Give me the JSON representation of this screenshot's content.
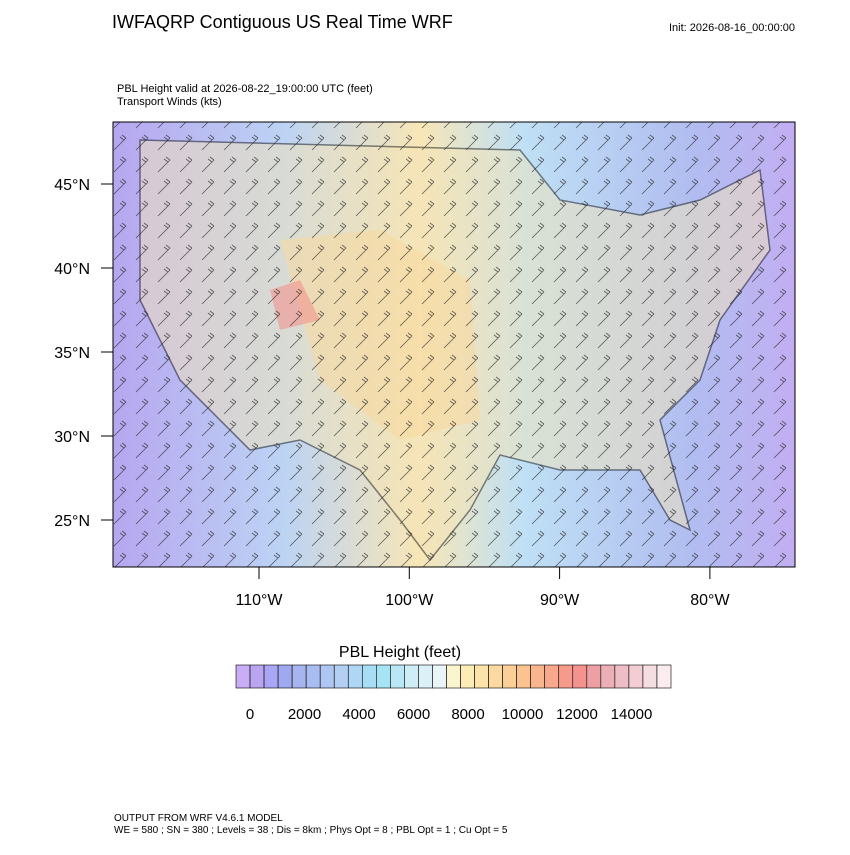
{
  "header": {
    "title": "IWFAQRP Contiguous US Real Time WRF",
    "init": "Init: 2026-08-16_00:00:00"
  },
  "map": {
    "subtitle": [
      "PBL Height valid at 2026-08-22_19:00:00 UTC   (feet)",
      "Transport Winds   (kts)"
    ],
    "lat_labels": [
      "45°N",
      "40°N",
      "35°N",
      "30°N",
      "25°N"
    ],
    "lon_labels": [
      "110°W",
      "100°W",
      "90°W",
      "80°W"
    ]
  },
  "colorbar": {
    "title": "PBL Height  (feet)",
    "tick_labels": [
      "0",
      "2000",
      "4000",
      "6000",
      "8000",
      "10000",
      "12000",
      "14000"
    ],
    "colors": [
      "#c9aef5",
      "#b9a5f0",
      "#a9a6f5",
      "#9fa9ef",
      "#a7b5ef",
      "#a9bdf0",
      "#aec6f2",
      "#b3cff4",
      "#b0d6f5",
      "#a8def5",
      "#a6e3f5",
      "#b9e7f5",
      "#cdeef6",
      "#dcf0f7",
      "#e9f5f8",
      "#fbf5cf",
      "#fbedb5",
      "#fbe3a9",
      "#fbd9a0",
      "#fbcf98",
      "#fbc38f",
      "#f9b68e",
      "#f8a88c",
      "#f69b8b",
      "#f3928f",
      "#ed9fa4",
      "#ebafb6",
      "#eebdc5",
      "#f2cdd3",
      "#f6dde2",
      "#faecef"
    ]
  },
  "footer": [
    "OUTPUT FROM WRF V4.6.1 MODEL",
    "WE = 580 ; SN = 380 ; Levels = 38 ; Dis = 8km ; Phys Opt = 8 ; PBL Opt = 1 ; Cu Opt = 5"
  ]
}
